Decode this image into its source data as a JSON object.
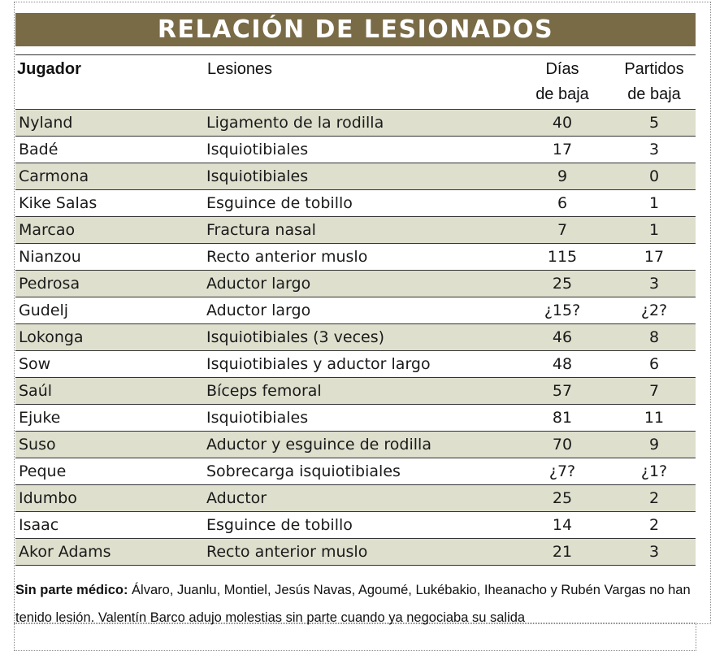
{
  "title": "RELACIÓN DE LESIONADOS",
  "headers": {
    "player": "Jugador",
    "injuries": "Lesiones",
    "days_line1": "Días",
    "days_line2": "de baja",
    "matches_line1": "Partidos",
    "matches_line2": "de baja"
  },
  "rows": [
    {
      "player": "Nyland",
      "injury": "Ligamento de la rodilla",
      "days": "40",
      "matches": "5"
    },
    {
      "player": "Badé",
      "injury": "Isquiotibiales",
      "days": "17",
      "matches": "3"
    },
    {
      "player": "Carmona",
      "injury": "Isquiotibiales",
      "days": "9",
      "matches": "0"
    },
    {
      "player": "Kike Salas",
      "injury": "Esguince de tobillo",
      "days": "6",
      "matches": "1"
    },
    {
      "player": "Marcao",
      "injury": "Fractura nasal",
      "days": "7",
      "matches": "1"
    },
    {
      "player": "Nianzou",
      "injury": "Recto anterior muslo",
      "days": "115",
      "matches": "17"
    },
    {
      "player": "Pedrosa",
      "injury": "Aductor largo",
      "days": "25",
      "matches": "3"
    },
    {
      "player": "Gudelj",
      "injury": "Aductor largo",
      "days": "¿15?",
      "matches": "¿2?"
    },
    {
      "player": "Lokonga",
      "injury": "Isquiotibiales (3 veces)",
      "days": "46",
      "matches": "8"
    },
    {
      "player": "Sow",
      "injury": "Isquiotibiales y aductor largo",
      "days": "48",
      "matches": "6"
    },
    {
      "player": "Saúl",
      "injury": "Bíceps femoral",
      "days": "57",
      "matches": "7"
    },
    {
      "player": "Ejuke",
      "injury": "Isquiotibiales",
      "days": "81",
      "matches": "11"
    },
    {
      "player": "Suso",
      "injury": "Aductor y esguince de rodilla",
      "days": "70",
      "matches": "9"
    },
    {
      "player": "Peque",
      "injury": "Sobrecarga isquiotibiales",
      "days": "¿7?",
      "matches": "¿1?"
    },
    {
      "player": "Idumbo",
      "injury": "Aductor",
      "days": "25",
      "matches": "2"
    },
    {
      "player": "Isaac",
      "injury": "Esguince de tobillo",
      "days": "14",
      "matches": "2"
    },
    {
      "player": "Akor Adams",
      "injury": "Recto anterior muslo",
      "days": "21",
      "matches": "3"
    }
  ],
  "note": {
    "label": "Sin parte médico:",
    "text": " Álvaro, Juanlu, Montiel, Jesús Navas, Agoumé, Lukébakio, Iheanacho y Rubén Vargas no han tenido lesión. Valentín Barco adujo molestias sin parte cuando ya negociaba su salida"
  },
  "colors": {
    "title_background": "#7a6b47",
    "row_shade": "#dedfcd"
  }
}
